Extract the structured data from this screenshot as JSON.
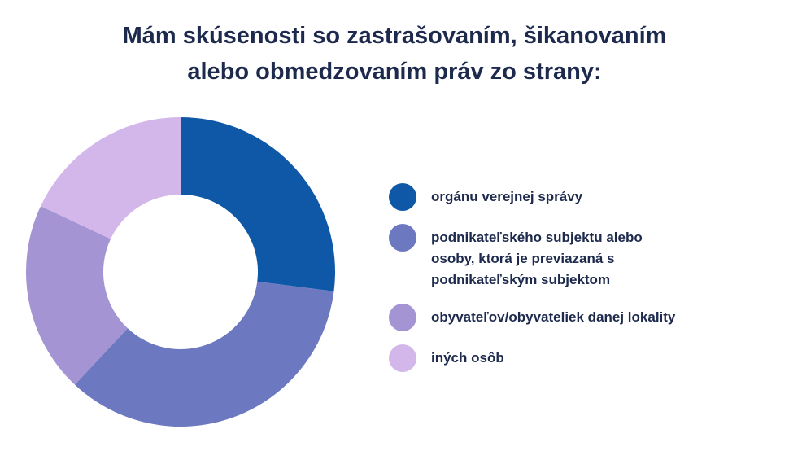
{
  "title_lines": [
    "Mám skúsenosti so zastrašovaním, šikanovaním",
    "alebo obmedzovaním práv zo strany:"
  ],
  "chart_data": {
    "type": "pie",
    "variant": "donut",
    "legend_position": "right",
    "categories": [
      "orgánu verejnej správy",
      "podnikateľského subjektu alebo\nosoby, ktorá je previazaná s\npodnikateľským subjektom",
      "obyvateľov/obyvateliek danej lokality",
      "iných osôb"
    ],
    "values": [
      27,
      35,
      20,
      18
    ],
    "colors": [
      "#0f58a8",
      "#6c78c0",
      "#a594d4",
      "#d4b7ea"
    ]
  }
}
